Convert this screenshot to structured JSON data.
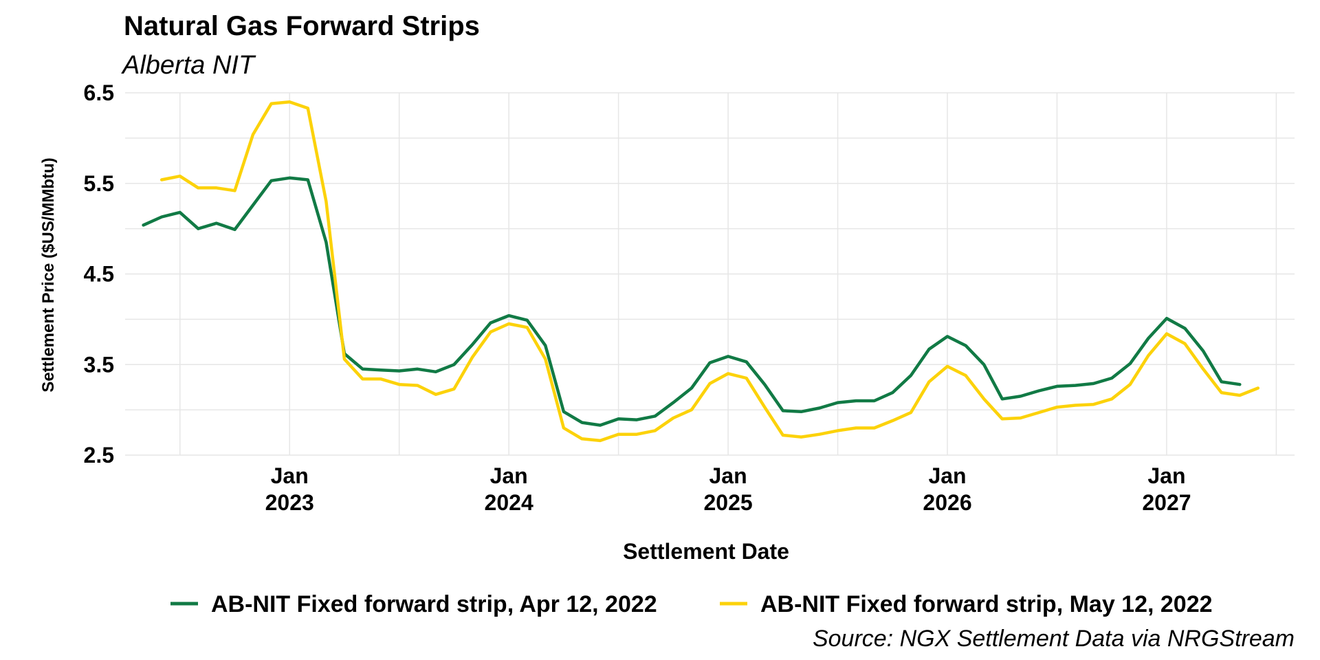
{
  "chart_data": {
    "type": "line",
    "title": "Natural Gas Forward Strips",
    "subtitle": "Alberta NIT",
    "xlabel": "Settlement Date",
    "ylabel": "Settlement Price ($US/MMbtu)",
    "caption": "Source: NGX Settlement Data via NRGStream",
    "ylim": [
      2.5,
      6.5
    ],
    "yticks": [
      "2.5",
      "3.5",
      "4.5",
      "5.5",
      "6.5"
    ],
    "xlim": [
      "2022-04-01",
      "2027-08-01"
    ],
    "xticks": [
      {
        "date": "2023-01",
        "line1": "Jan",
        "line2": "2023"
      },
      {
        "date": "2024-01",
        "line1": "Jan",
        "line2": "2024"
      },
      {
        "date": "2025-01",
        "line1": "Jan",
        "line2": "2025"
      },
      {
        "date": "2026-01",
        "line1": "Jan",
        "line2": "2026"
      },
      {
        "date": "2027-01",
        "line1": "Jan",
        "line2": "2027"
      }
    ],
    "grid": true,
    "legend_position": "bottom",
    "series": [
      {
        "name": "AB-NIT Fixed forward strip, Apr 12, 2022",
        "color": "#117a45",
        "start": "2022-05",
        "values": [
          5.04,
          5.13,
          5.18,
          5.0,
          5.06,
          4.99,
          5.26,
          5.53,
          5.56,
          5.54,
          4.85,
          3.62,
          3.45,
          3.44,
          3.43,
          3.45,
          3.42,
          3.5,
          3.72,
          3.96,
          4.04,
          3.99,
          3.71,
          2.98,
          2.86,
          2.83,
          2.9,
          2.89,
          2.93,
          3.08,
          3.24,
          3.52,
          3.59,
          3.53,
          3.28,
          2.99,
          2.98,
          3.02,
          3.08,
          3.1,
          3.1,
          3.19,
          3.38,
          3.67,
          3.81,
          3.71,
          3.5,
          3.12,
          3.15,
          3.21,
          3.26,
          3.27,
          3.29,
          3.35,
          3.51,
          3.79,
          4.01,
          3.9,
          3.65,
          3.31,
          3.28
        ]
      },
      {
        "name": "AB-NIT Fixed forward strip, May 12, 2022",
        "color": "#fcd20a",
        "start": "2022-06",
        "values": [
          5.54,
          5.58,
          5.45,
          5.45,
          5.42,
          6.04,
          6.38,
          6.4,
          6.33,
          5.3,
          3.56,
          3.34,
          3.34,
          3.28,
          3.27,
          3.17,
          3.23,
          3.58,
          3.86,
          3.95,
          3.91,
          3.56,
          2.8,
          2.68,
          2.66,
          2.73,
          2.73,
          2.77,
          2.91,
          3.0,
          3.29,
          3.4,
          3.35,
          3.03,
          2.72,
          2.7,
          2.73,
          2.77,
          2.8,
          2.8,
          2.88,
          2.97,
          3.31,
          3.48,
          3.38,
          3.12,
          2.9,
          2.91,
          2.97,
          3.03,
          3.05,
          3.06,
          3.12,
          3.28,
          3.6,
          3.84,
          3.73,
          3.45,
          3.19,
          3.16,
          3.24
        ]
      }
    ]
  }
}
